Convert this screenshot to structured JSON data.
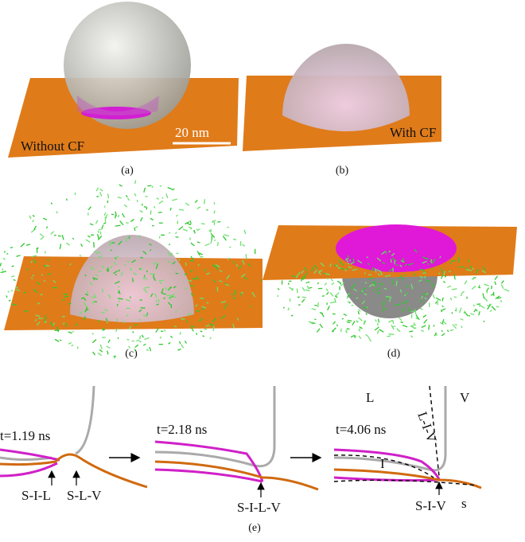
{
  "panels": [
    {
      "label": "(a)",
      "texts": [
        "Without CF",
        "20 nm"
      ]
    },
    {
      "label": "(b)",
      "texts": [
        "With CF"
      ]
    },
    {
      "label": "(c)"
    },
    {
      "label": "(d)"
    }
  ],
  "panel_e": {
    "label": "(e)",
    "frames": [
      {
        "time": "t=1.19 ns",
        "annotations": [
          "S-I-L",
          "S-L-V"
        ]
      },
      {
        "time": "t=2.18 ns",
        "annotations": [
          "S-I-L-V"
        ]
      },
      {
        "time": "t=4.06 ns",
        "annotations": [
          "L",
          "V",
          "L-I-V",
          "I",
          "S-I-V",
          "s"
        ]
      }
    ]
  }
}
